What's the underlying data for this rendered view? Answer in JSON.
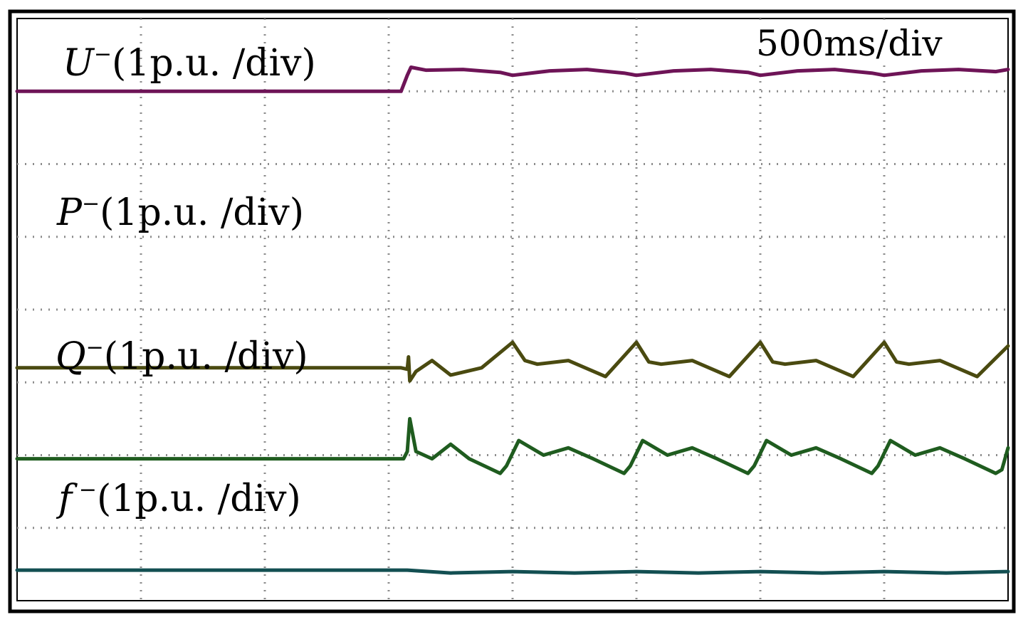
{
  "chart_data": {
    "type": "line",
    "title": "",
    "timebase": "500ms/div",
    "x_divisions": 8,
    "y_divisions": 8,
    "grid": true,
    "x_unit": "div",
    "xlim": [
      0,
      8
    ],
    "ylim": [
      0,
      8
    ],
    "fault_time_div": 3.15,
    "series": [
      {
        "name": "U",
        "symbol": "U",
        "superscript": "−",
        "scale": "(1p.u. /div)",
        "color": "#6e1457",
        "x": [
          0,
          3.1,
          3.15,
          3.18,
          3.3,
          3.6,
          3.9,
          4.0,
          4.3,
          4.6,
          4.9,
          5.0,
          5.3,
          5.6,
          5.9,
          6.0,
          6.3,
          6.6,
          6.9,
          7.0,
          7.3,
          7.6,
          7.9,
          8.0
        ],
        "y": [
          7.0,
          7.0,
          7.22,
          7.33,
          7.29,
          7.3,
          7.26,
          7.22,
          7.28,
          7.3,
          7.25,
          7.22,
          7.28,
          7.3,
          7.26,
          7.22,
          7.28,
          7.3,
          7.25,
          7.22,
          7.28,
          7.3,
          7.27,
          7.3
        ]
      },
      {
        "name": "P",
        "symbol": "P",
        "superscript": "−",
        "scale": "(1p.u. /div)",
        "color": "#4a4a10",
        "x": [
          0,
          3.1,
          3.15,
          3.16,
          3.17,
          3.22,
          3.35,
          3.5,
          3.75,
          4.0,
          4.1,
          4.2,
          4.45,
          4.75,
          5.0,
          5.1,
          5.2,
          5.45,
          5.75,
          6.0,
          6.1,
          6.2,
          6.45,
          6.75,
          7.0,
          7.1,
          7.2,
          7.45,
          7.75,
          8.0
        ],
        "y": [
          3.2,
          3.2,
          3.18,
          3.35,
          3.02,
          3.15,
          3.3,
          3.1,
          3.2,
          3.55,
          3.3,
          3.25,
          3.3,
          3.08,
          3.55,
          3.28,
          3.25,
          3.3,
          3.08,
          3.55,
          3.28,
          3.25,
          3.3,
          3.08,
          3.55,
          3.28,
          3.25,
          3.3,
          3.08,
          3.5
        ]
      },
      {
        "name": "Q",
        "symbol": "Q",
        "superscript": "−",
        "scale": "(1p.u. /div)",
        "color": "#1f5c1f",
        "x": [
          0,
          3.12,
          3.15,
          3.17,
          3.22,
          3.35,
          3.5,
          3.65,
          3.9,
          3.95,
          4.05,
          4.25,
          4.45,
          4.65,
          4.9,
          4.95,
          5.05,
          5.25,
          5.45,
          5.65,
          5.9,
          5.95,
          6.05,
          6.25,
          6.45,
          6.65,
          6.9,
          6.95,
          7.05,
          7.25,
          7.45,
          7.65,
          7.9,
          7.95,
          8.0
        ],
        "y": [
          1.95,
          1.95,
          2.05,
          2.5,
          2.05,
          1.95,
          2.15,
          1.95,
          1.75,
          1.85,
          2.2,
          2.0,
          2.1,
          1.95,
          1.75,
          1.85,
          2.2,
          2.0,
          2.1,
          1.95,
          1.75,
          1.85,
          2.2,
          2.0,
          2.1,
          1.95,
          1.75,
          1.85,
          2.2,
          2.0,
          2.1,
          1.95,
          1.75,
          1.8,
          2.1
        ]
      },
      {
        "name": "f",
        "symbol": "f",
        "superscript": " −",
        "scale": "(1p.u. /div)",
        "color": "#134f52",
        "x": [
          0,
          3.15,
          3.5,
          4.0,
          4.5,
          5.0,
          5.5,
          6.0,
          6.5,
          7.0,
          7.5,
          8.0
        ],
        "y": [
          0.42,
          0.42,
          0.38,
          0.4,
          0.38,
          0.4,
          0.38,
          0.4,
          0.38,
          0.4,
          0.38,
          0.4
        ]
      }
    ]
  }
}
